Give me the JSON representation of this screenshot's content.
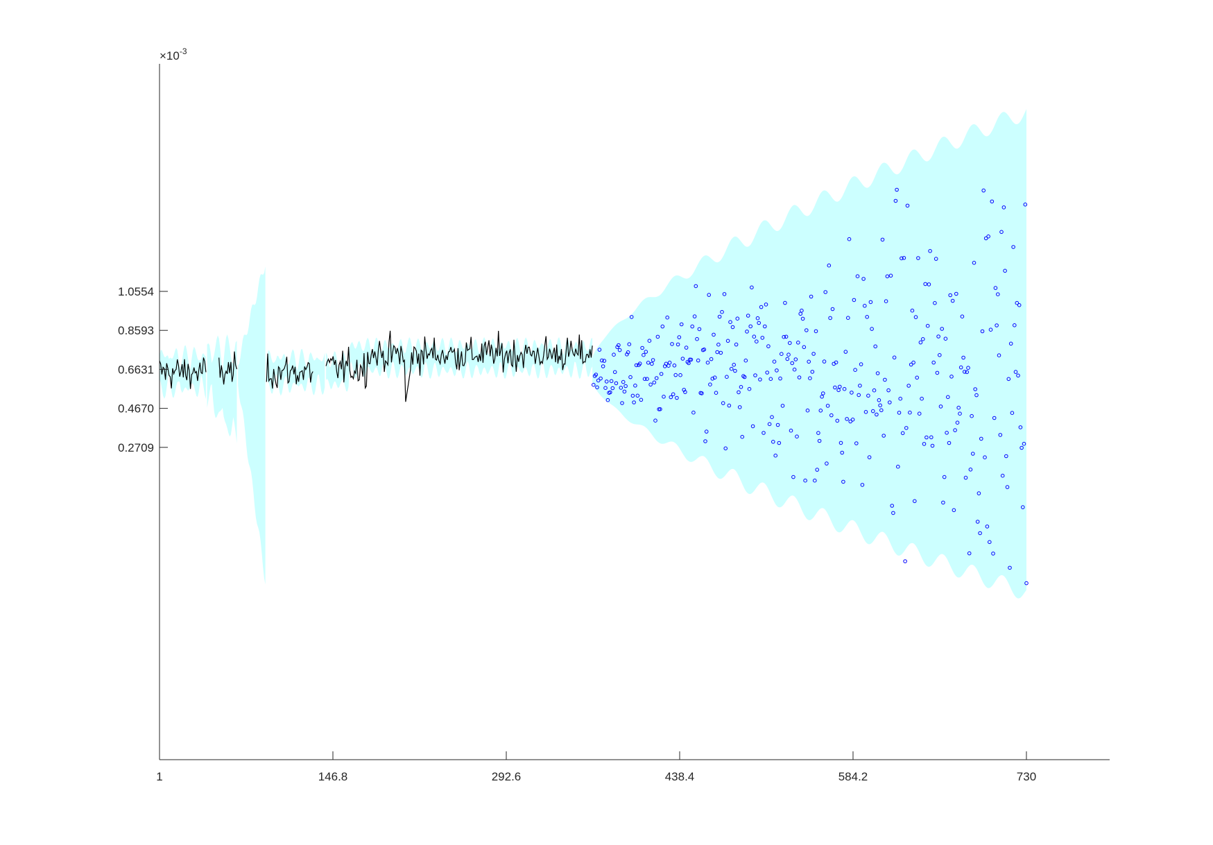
{
  "chart_data": {
    "type": "line",
    "title": "",
    "xlabel": "",
    "ylabel": "",
    "y_exponent_label": {
      "times": "×10",
      "power": "-3"
    },
    "xlim": [
      1,
      800
    ],
    "ylim": [
      -1.3,
      2.2
    ],
    "x_ticks": [
      {
        "value": 1,
        "label": "1"
      },
      {
        "value": 146.8,
        "label": "146.8"
      },
      {
        "value": 292.6,
        "label": "292.6"
      },
      {
        "value": 438.4,
        "label": "438.4"
      },
      {
        "value": 584.2,
        "label": "584.2"
      },
      {
        "value": 730,
        "label": "730"
      }
    ],
    "y_ticks": [
      {
        "value": 0.2709,
        "label": "0.2709"
      },
      {
        "value": 0.467,
        "label": "0.4670"
      },
      {
        "value": 0.6631,
        "label": "0.6631"
      },
      {
        "value": 0.8593,
        "label": "0.8593"
      },
      {
        "value": 1.0554,
        "label": "1.0554"
      }
    ],
    "grid": false,
    "legend": "none",
    "series": [
      {
        "kind": "observed-line",
        "color": "#000000",
        "x_range": [
          1,
          365
        ],
        "segments": [
          [
            1,
            40
          ],
          [
            51,
            66
          ],
          [
            91,
            130
          ],
          [
            141,
            365
          ]
        ],
        "level": 0.66,
        "noise": 0.06
      },
      {
        "kind": "confidence-band",
        "color": "#ccffff",
        "x_range": [
          1,
          730
        ],
        "segments": [
          [
            1,
            40
          ],
          [
            41,
            66
          ],
          [
            67,
            90
          ],
          [
            91,
            140
          ],
          [
            141,
            365
          ],
          [
            365,
            730
          ]
        ],
        "center": 0.62,
        "end_upper": 1.92,
        "end_lower": -0.4
      },
      {
        "kind": "simulated-points",
        "color": "#0000ff",
        "x_range": [
          366,
          730
        ],
        "marker": "circle"
      }
    ]
  }
}
